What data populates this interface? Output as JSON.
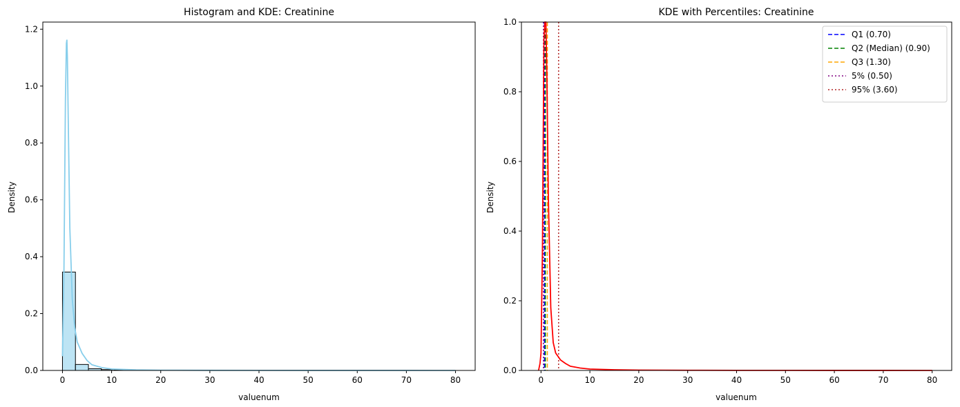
{
  "chart_data": [
    {
      "type": "histogram",
      "title": "Histogram and KDE: Creatinine",
      "xlabel": "valuenum",
      "ylabel": "Density",
      "xlim": [
        -4,
        84
      ],
      "ylim": [
        0,
        1.225
      ],
      "xticks": [
        0,
        10,
        20,
        30,
        40,
        50,
        60,
        70,
        80
      ],
      "yticks": [
        0.0,
        0.2,
        0.4,
        0.6,
        0.8,
        1.0,
        1.2
      ],
      "grid": false,
      "bin_width": 2.64,
      "bins": [
        {
          "x0": 0.0,
          "x1": 2.64,
          "density": 0.346
        },
        {
          "x0": 2.64,
          "x1": 5.28,
          "density": 0.021
        },
        {
          "x0": 5.28,
          "x1": 7.92,
          "density": 0.006
        },
        {
          "x0": 7.92,
          "x1": 10.56,
          "density": 0.003
        },
        {
          "x0": 10.56,
          "x1": 13.2,
          "density": 0.0015
        },
        {
          "x0": 13.2,
          "x1": 15.84,
          "density": 0.001
        },
        {
          "x0": 15.84,
          "x1": 18.48,
          "density": 0.0008
        },
        {
          "x0": 18.48,
          "x1": 21.12,
          "density": 0.0005
        }
      ],
      "bar_color": "#87CEEB",
      "kde_color": "#87CEEB",
      "kde": {
        "x": [
          0,
          0.3,
          0.6,
          0.8,
          0.9,
          1.0,
          1.2,
          1.5,
          2.0,
          2.5,
          3,
          4,
          5,
          6,
          8,
          10,
          15,
          20,
          30,
          40,
          50,
          60,
          70,
          80
        ],
        "y": [
          0.05,
          0.35,
          0.95,
          1.15,
          1.163,
          1.1,
          0.85,
          0.5,
          0.25,
          0.15,
          0.1,
          0.06,
          0.035,
          0.02,
          0.01,
          0.005,
          0.002,
          0.001,
          0.0005,
          0.0003,
          0.0002,
          0.0001,
          0.0001,
          0
        ]
      }
    },
    {
      "type": "line",
      "title": "KDE with Percentiles: Creatinine",
      "xlabel": "valuenum",
      "ylabel": "Density",
      "xlim": [
        -4,
        84
      ],
      "ylim": [
        0,
        1.0
      ],
      "xticks": [
        0,
        10,
        20,
        30,
        40,
        50,
        60,
        70,
        80
      ],
      "yticks": [
        0.0,
        0.2,
        0.4,
        0.6,
        0.8,
        1.0
      ],
      "grid": false,
      "legend_position": "top-right",
      "kde_color": "#ff0000",
      "kde": {
        "x": [
          -0.5,
          -0.2,
          0,
          0.3,
          0.6,
          0.8,
          1.0,
          1.2,
          1.5,
          2.0,
          2.5,
          3,
          4,
          5,
          6,
          8,
          10,
          15,
          20,
          30,
          40,
          50,
          60,
          70,
          80
        ],
        "y": [
          0.0,
          0.02,
          0.05,
          0.35,
          0.95,
          1.15,
          1.1,
          0.85,
          0.5,
          0.18,
          0.08,
          0.05,
          0.03,
          0.02,
          0.012,
          0.007,
          0.004,
          0.002,
          0.001,
          0.0005,
          0.0003,
          0.0002,
          0.0001,
          0.0001,
          0
        ]
      },
      "percentile_lines": [
        {
          "label": "Q1 (0.70)",
          "value": 0.7,
          "color": "#0000ff",
          "style": "dashed"
        },
        {
          "label": "Q2 (Median) (0.90)",
          "value": 0.9,
          "color": "#008000",
          "style": "dashed"
        },
        {
          "label": "Q3 (1.30)",
          "value": 1.3,
          "color": "#ffa500",
          "style": "dashed"
        },
        {
          "label": "5% (0.50)",
          "value": 0.5,
          "color": "#800080",
          "style": "dotted"
        },
        {
          "label": "95% (3.60)",
          "value": 3.6,
          "color": "#b22222",
          "style": "dotted"
        }
      ]
    }
  ]
}
